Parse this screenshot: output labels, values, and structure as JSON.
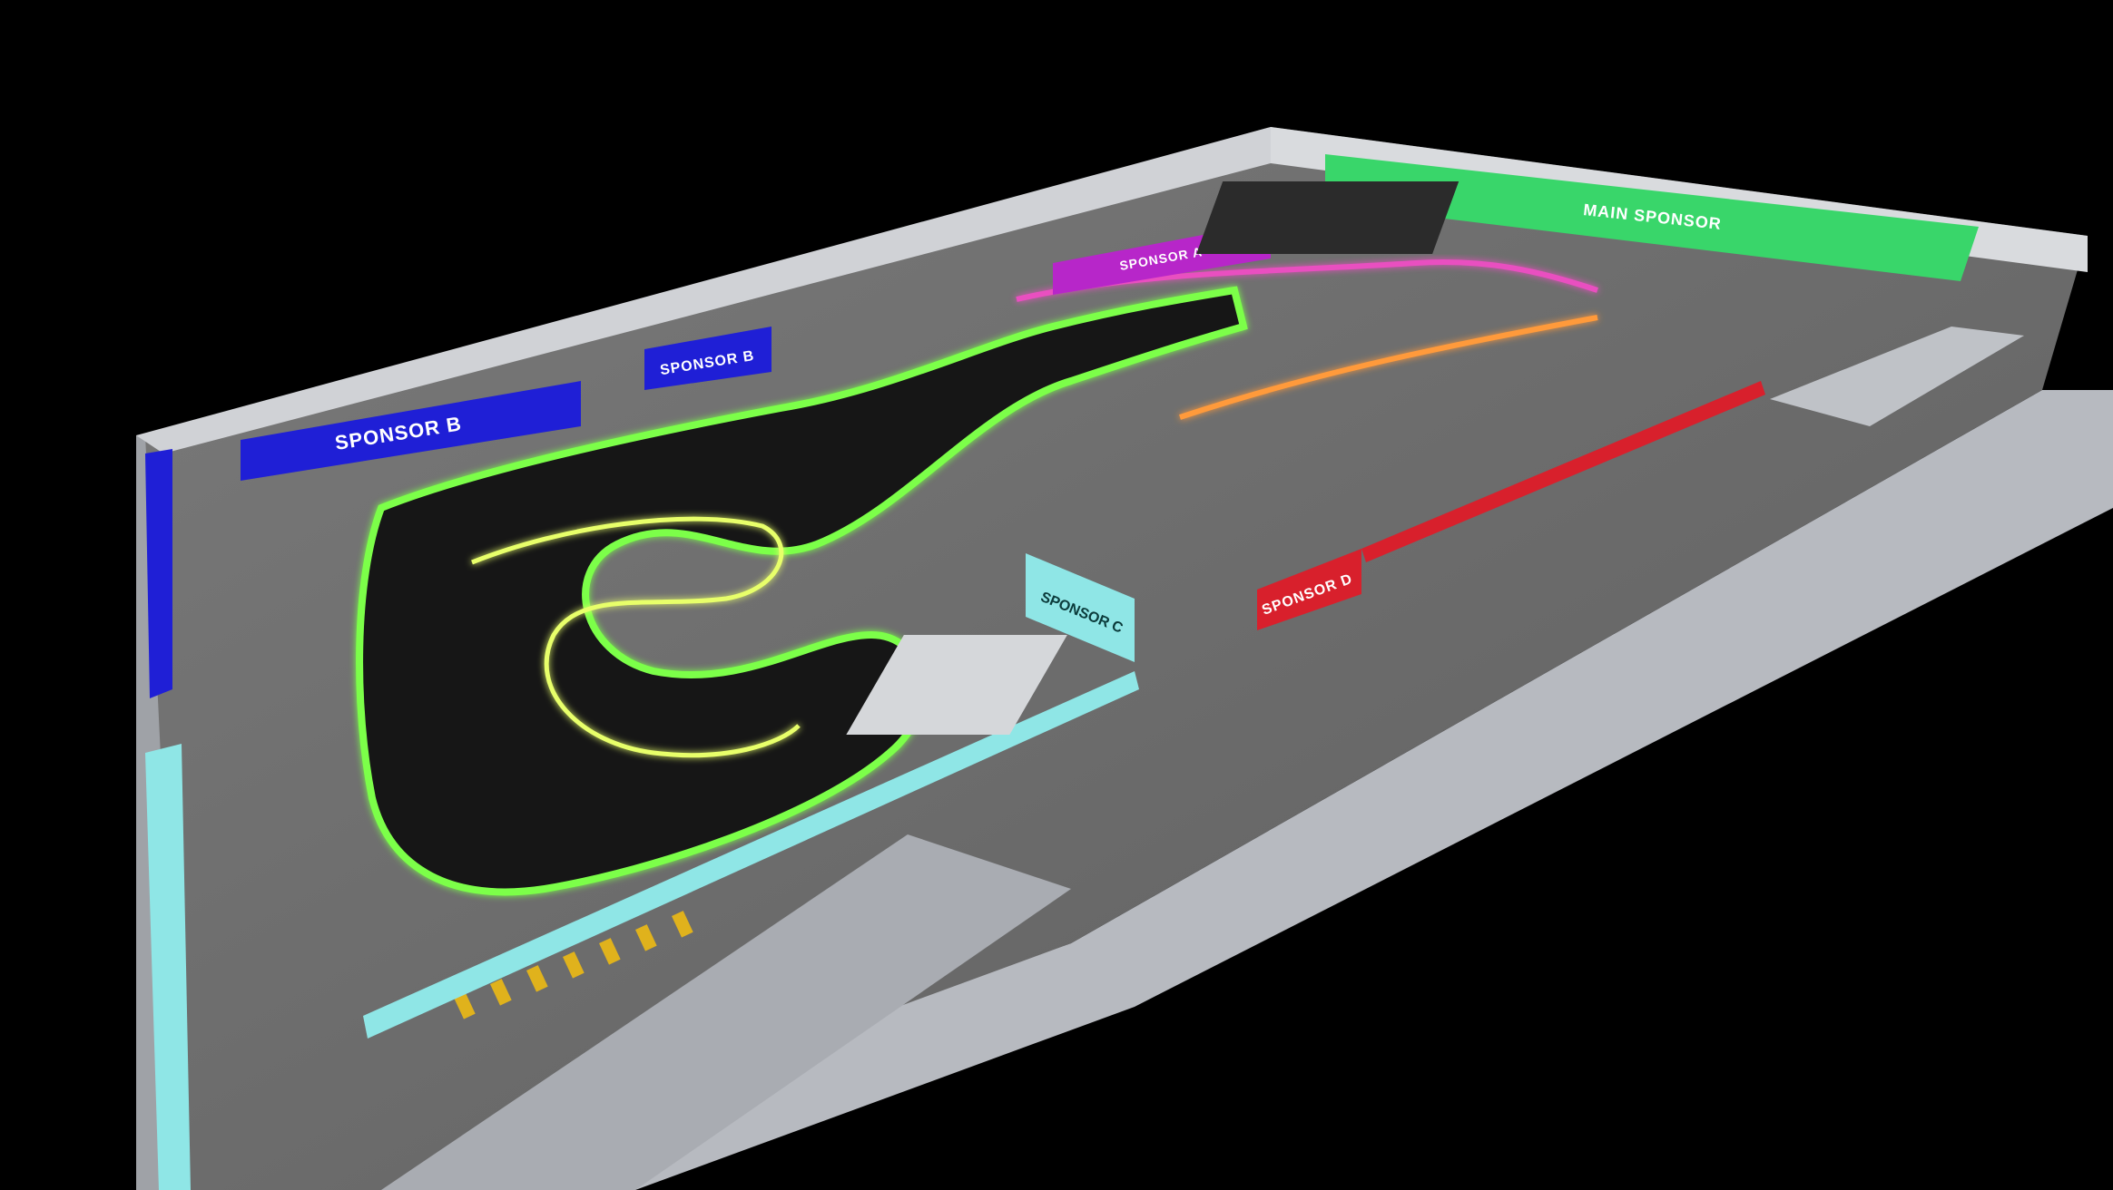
{
  "image": {
    "type": "3d-render",
    "subject": "indoor-karting-facility",
    "background_color": "#000000"
  },
  "banners": {
    "sponsor_a": "SPONSOR A",
    "sponsor_b": "SPONSOR B",
    "sponsor_c": "SPONSOR C",
    "sponsor_d": "SPONSOR D",
    "main_sponsor": "MAIN SPONSOR"
  },
  "colors": {
    "sponsor_a": "#b726c9",
    "sponsor_b": "#1f1fd6",
    "sponsor_c": "#8fe6e6",
    "sponsor_d": "#d8202c",
    "main_sponsor": "#39d66a",
    "track": "#141414",
    "track_edge_glow": "#7cff4a",
    "floor": "#6e6e6e",
    "walls": "#c9ccd1",
    "hazard": "#e0b21c"
  }
}
